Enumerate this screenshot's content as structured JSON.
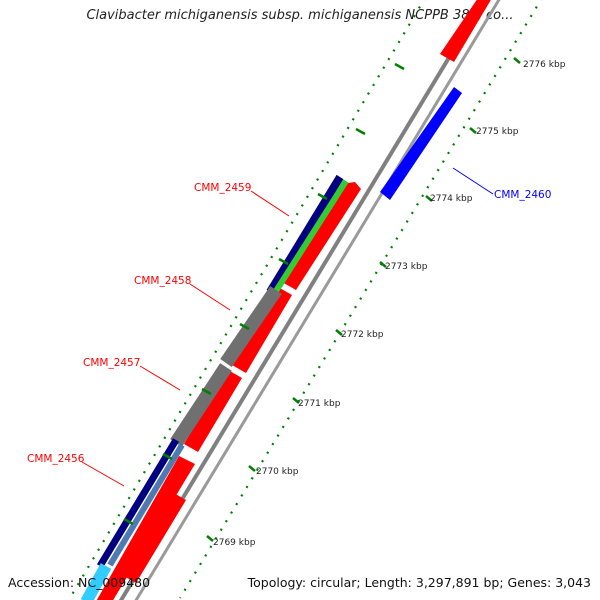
{
  "title": "Clavibacter michiganensis subsp. michiganensis NCPPB 382, co...",
  "footer": {
    "accession": "Accession: NC_009480",
    "summary": "Topology: circular; Length: 3,297,891 bp; Genes: 3,043"
  },
  "ticks": [
    "2769 kbp",
    "2770 kbp",
    "2771 kbp",
    "2772 kbp",
    "2773 kbp",
    "2774 kbp",
    "2775 kbp",
    "2776 kbp"
  ],
  "gene_labels": [
    "CMM_2456",
    "CMM_2457",
    "CMM_2458",
    "CMM_2459",
    "CMM_2460"
  ],
  "colors": {
    "forward_feature": "#ff0000",
    "reverse_feature": "#0000ff",
    "backbone": "#808080",
    "cog_navy": "#000080",
    "cog_green": "#33cc33",
    "cog_gray": "#707070",
    "cog_steel": "#4d7ab3",
    "cog_cyan": "#33ccff",
    "tick_green": "#008000"
  }
}
